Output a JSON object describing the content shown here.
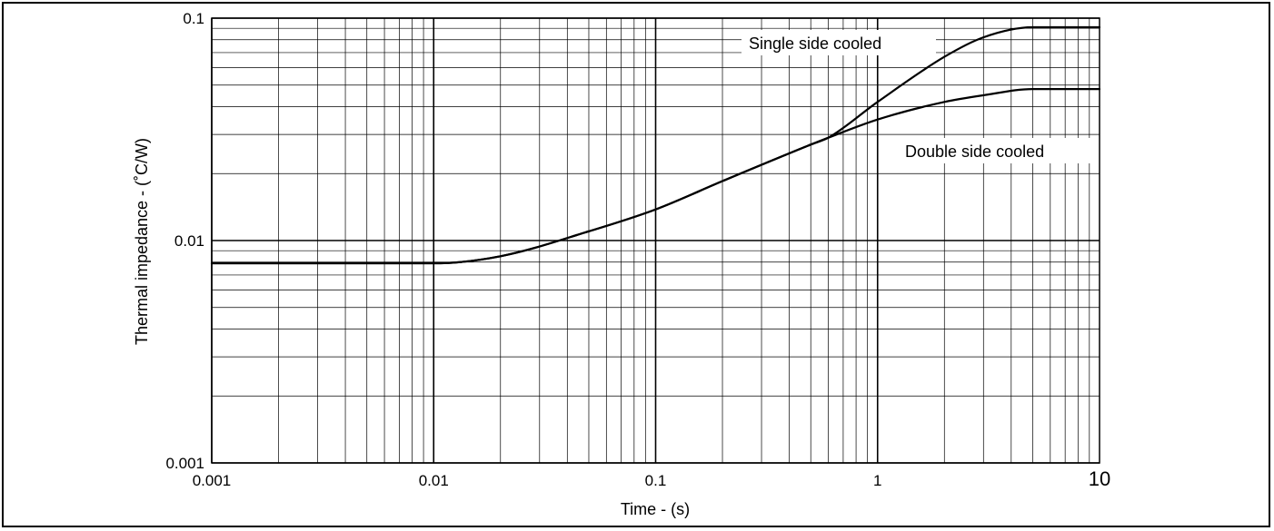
{
  "chart_data": {
    "type": "line",
    "title": "",
    "xlabel": "Time - (s)",
    "ylabel": "Thermal impedance - (˚C/W)",
    "xscale": "log",
    "yscale": "log",
    "xlim": [
      0.001,
      10
    ],
    "ylim": [
      0.001,
      0.1
    ],
    "grid": true,
    "x_ticks": [
      "0.001",
      "0.01",
      "0.1",
      "1",
      "10"
    ],
    "y_ticks": [
      "0.001",
      "0.01",
      "0.1"
    ],
    "series": [
      {
        "name": "Single side cooled",
        "x": [
          0.001,
          0.005,
          0.01,
          0.02,
          0.05,
          0.1,
          0.2,
          0.5,
          0.6,
          1,
          2,
          3,
          5,
          10
        ],
        "y": [
          0.0079,
          0.0079,
          0.0079,
          0.0085,
          0.011,
          0.0138,
          0.0185,
          0.027,
          0.029,
          0.042,
          0.067,
          0.082,
          0.091,
          0.091
        ]
      },
      {
        "name": "Double side cooled",
        "x": [
          0.001,
          0.005,
          0.01,
          0.02,
          0.05,
          0.1,
          0.2,
          0.5,
          0.6,
          1,
          2,
          3,
          5,
          10
        ],
        "y": [
          0.0079,
          0.0079,
          0.0079,
          0.0085,
          0.011,
          0.0138,
          0.0185,
          0.027,
          0.029,
          0.035,
          0.042,
          0.045,
          0.048,
          0.048
        ]
      }
    ],
    "annotations": [
      {
        "text": "Single side cooled",
        "series": 0
      },
      {
        "text": "Double side cooled",
        "series": 1
      }
    ]
  }
}
